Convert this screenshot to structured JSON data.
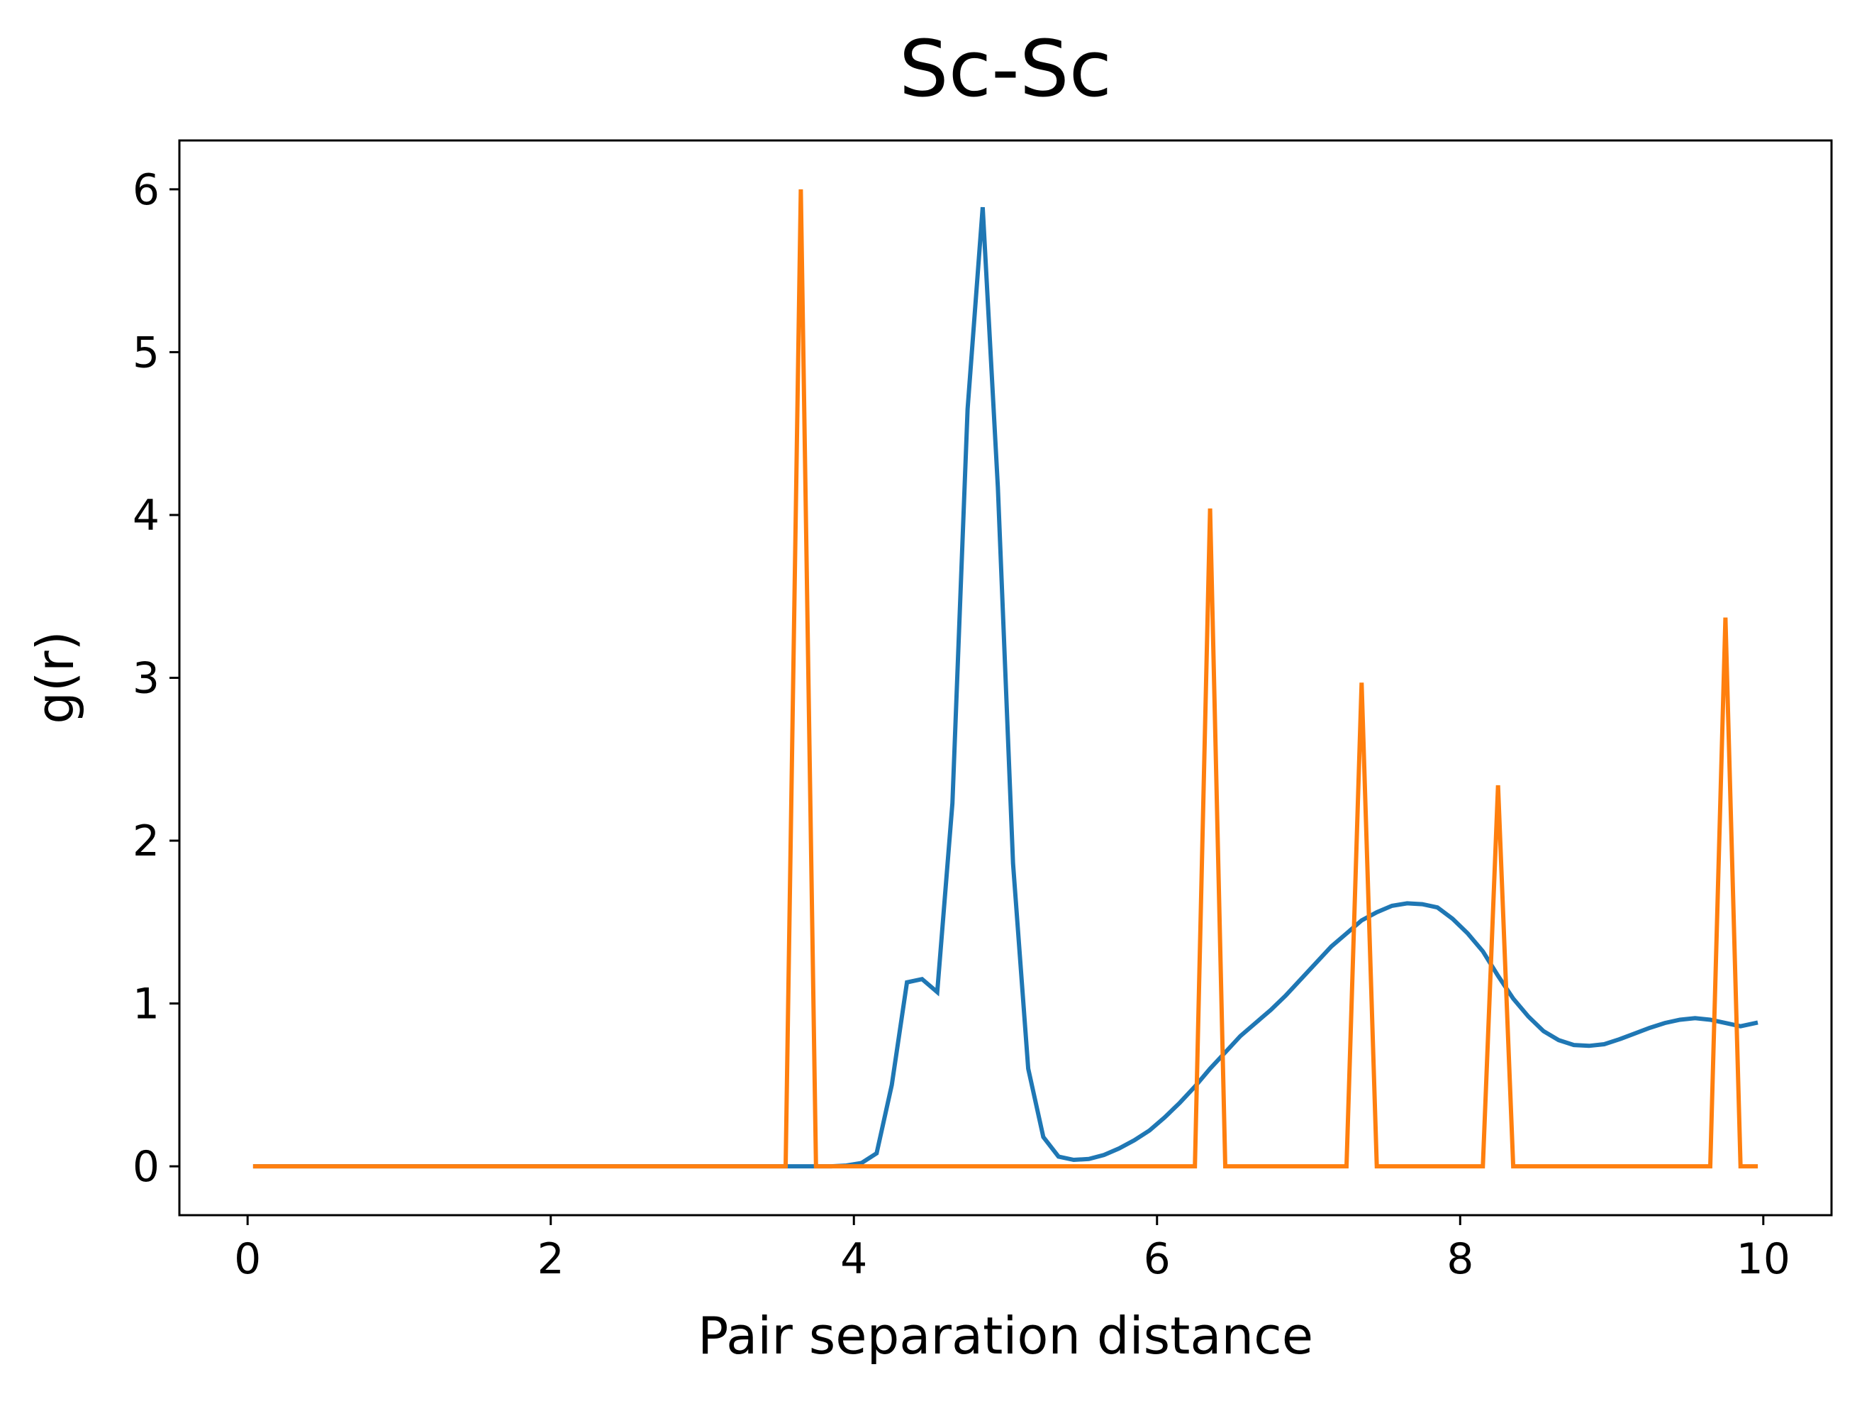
{
  "chart_data": {
    "type": "line",
    "title": "Sc-Sc",
    "xlabel": "Pair separation distance",
    "ylabel": "g(r)",
    "xlim": [
      -0.45,
      10.45
    ],
    "ylim": [
      -0.3,
      6.3
    ],
    "xticks": [
      0,
      2,
      4,
      6,
      8,
      10
    ],
    "yticks": [
      0,
      1,
      2,
      3,
      4,
      5,
      6
    ],
    "grid": false,
    "legend": "none",
    "series": [
      {
        "color": "#1f77b4",
        "x": [
          0.05,
          0.15,
          0.25,
          0.35,
          0.45,
          0.55,
          0.65,
          0.75,
          0.85,
          0.95,
          1.05,
          1.15,
          1.25,
          1.35,
          1.45,
          1.55,
          1.65,
          1.75,
          1.85,
          1.95,
          2.05,
          2.15,
          2.25,
          2.35,
          2.45,
          2.55,
          2.65,
          2.75,
          2.85,
          2.95,
          3.05,
          3.15,
          3.25,
          3.35,
          3.45,
          3.55,
          3.65,
          3.75,
          3.85,
          3.95,
          4.05,
          4.15,
          4.25,
          4.35,
          4.45,
          4.55,
          4.65,
          4.75,
          4.85,
          4.95,
          5.05,
          5.15,
          5.25,
          5.35,
          5.45,
          5.55,
          5.65,
          5.75,
          5.85,
          5.95,
          6.05,
          6.15,
          6.25,
          6.35,
          6.45,
          6.55,
          6.65,
          6.75,
          6.85,
          6.95,
          7.05,
          7.15,
          7.25,
          7.35,
          7.45,
          7.55,
          7.65,
          7.75,
          7.85,
          7.95,
          8.05,
          8.15,
          8.25,
          8.35,
          8.45,
          8.55,
          8.65,
          8.75,
          8.85,
          8.95,
          9.05,
          9.15,
          9.25,
          9.35,
          9.45,
          9.55,
          9.65,
          9.75,
          9.85,
          9.95
        ],
        "y": [
          0,
          0,
          0,
          0,
          0,
          0,
          0,
          0,
          0,
          0,
          0,
          0,
          0,
          0,
          0,
          0,
          0,
          0,
          0,
          0,
          0,
          0,
          0,
          0,
          0,
          0,
          0,
          0,
          0,
          0,
          0,
          0,
          0,
          0,
          0,
          0,
          0,
          0,
          0,
          0.005,
          0.02,
          0.08,
          0.5,
          1.13,
          1.15,
          1.07,
          2.23,
          4.65,
          5.89,
          4.17,
          1.86,
          0.6,
          0.18,
          0.06,
          0.04,
          0.045,
          0.07,
          0.11,
          0.16,
          0.22,
          0.3,
          0.39,
          0.49,
          0.6,
          0.7,
          0.8,
          0.88,
          0.96,
          1.05,
          1.15,
          1.25,
          1.35,
          1.43,
          1.51,
          1.56,
          1.6,
          1.615,
          1.61,
          1.59,
          1.52,
          1.43,
          1.32,
          1.17,
          1.03,
          0.92,
          0.83,
          0.775,
          0.745,
          0.74,
          0.75,
          0.78,
          0.815,
          0.85,
          0.88,
          0.9,
          0.91,
          0.9,
          0.88,
          0.86,
          0.88
        ]
      },
      {
        "color": "#ff7f0e",
        "x": [
          0.05,
          3.55,
          3.65,
          3.75,
          6.25,
          6.35,
          6.45,
          7.25,
          7.35,
          7.45,
          8.15,
          8.25,
          8.35,
          9.65,
          9.75,
          9.85,
          9.95
        ],
        "y": [
          0,
          0,
          6.0,
          0,
          0,
          4.04,
          0,
          0,
          2.97,
          0,
          0,
          2.34,
          0,
          0,
          3.37,
          0,
          0
        ]
      }
    ]
  }
}
